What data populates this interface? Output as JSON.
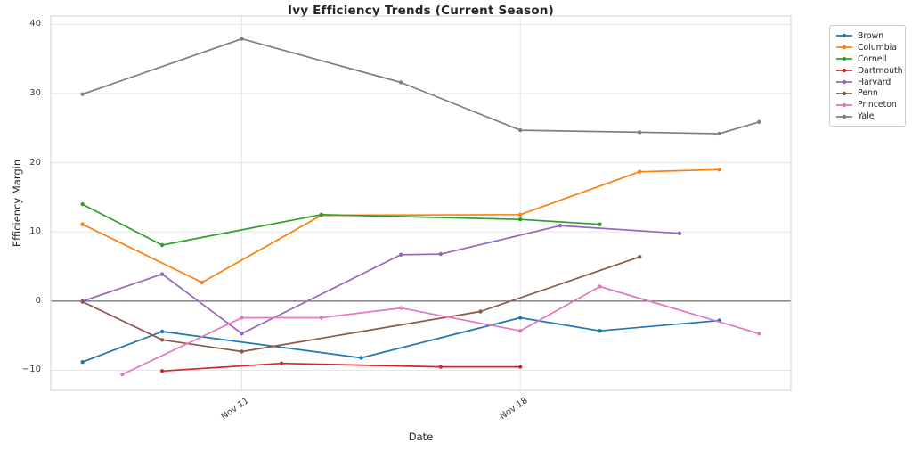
{
  "chart_data": {
    "type": "line",
    "title": "Ivy Efficiency Trends (Current Season)",
    "xlabel": "Date",
    "ylabel": "Efficiency Margin",
    "x_ticks": [
      {
        "label": "Nov 11",
        "day": 11
      },
      {
        "label": "Nov 18",
        "day": 18
      }
    ],
    "y_ticks": [
      {
        "label": "−10",
        "value": -10
      },
      {
        "label": "0",
        "value": 0
      },
      {
        "label": "10",
        "value": 10
      },
      {
        "label": "20",
        "value": 20
      },
      {
        "label": "30",
        "value": 30
      },
      {
        "label": "40",
        "value": 40
      }
    ],
    "xlim_days": [
      6.2,
      24.8
    ],
    "ylim": [
      -12.9,
      41.2
    ],
    "grid": true,
    "zero_line": true,
    "legend_position": "outside-top-right",
    "series": [
      {
        "name": "Brown",
        "color": "#1f77b4",
        "points": [
          {
            "date": "Nov 7",
            "day": 7,
            "value": -8.8
          },
          {
            "date": "Nov 9",
            "day": 9,
            "value": -4.4
          },
          {
            "date": "Nov 14",
            "day": 14,
            "value": -8.2
          },
          {
            "date": "Nov 18",
            "day": 18,
            "value": -2.4
          },
          {
            "date": "Nov 20",
            "day": 20,
            "value": -4.3
          },
          {
            "date": "Nov 23",
            "day": 23,
            "value": -2.8
          }
        ]
      },
      {
        "name": "Columbia",
        "color": "#ff7f0e",
        "points": [
          {
            "date": "Nov 7",
            "day": 7,
            "value": 11.1
          },
          {
            "date": "Nov 10",
            "day": 10,
            "value": 2.7
          },
          {
            "date": "Nov 13",
            "day": 13,
            "value": 12.4
          },
          {
            "date": "Nov 18",
            "day": 18,
            "value": 12.5
          },
          {
            "date": "Nov 21",
            "day": 21,
            "value": 18.7
          },
          {
            "date": "Nov 23",
            "day": 23,
            "value": 19.0
          }
        ]
      },
      {
        "name": "Cornell",
        "color": "#2ca02c",
        "points": [
          {
            "date": "Nov 7",
            "day": 7,
            "value": 14.0
          },
          {
            "date": "Nov 9",
            "day": 9,
            "value": 8.1
          },
          {
            "date": "Nov 13",
            "day": 13,
            "value": 12.5
          },
          {
            "date": "Nov 18",
            "day": 18,
            "value": 11.8
          },
          {
            "date": "Nov 20",
            "day": 20,
            "value": 11.1
          }
        ]
      },
      {
        "name": "Dartmouth",
        "color": "#d62728",
        "points": [
          {
            "date": "Nov 9",
            "day": 9,
            "value": -10.1
          },
          {
            "date": "Nov 12",
            "day": 12,
            "value": -9.0
          },
          {
            "date": "Nov 16",
            "day": 16,
            "value": -9.5
          },
          {
            "date": "Nov 18",
            "day": 18,
            "value": -9.5
          }
        ]
      },
      {
        "name": "Harvard",
        "color": "#9467bd",
        "points": [
          {
            "date": "Nov 7",
            "day": 7,
            "value": 0.0
          },
          {
            "date": "Nov 9",
            "day": 9,
            "value": 3.9
          },
          {
            "date": "Nov 11",
            "day": 11,
            "value": -4.7
          },
          {
            "date": "Nov 15",
            "day": 15,
            "value": 6.7
          },
          {
            "date": "Nov 16",
            "day": 16,
            "value": 6.8
          },
          {
            "date": "Nov 19",
            "day": 19,
            "value": 10.9
          },
          {
            "date": "Nov 22",
            "day": 22,
            "value": 9.8
          }
        ]
      },
      {
        "name": "Penn",
        "color": "#8c564b",
        "points": [
          {
            "date": "Nov 7",
            "day": 7,
            "value": -0.1
          },
          {
            "date": "Nov 9",
            "day": 9,
            "value": -5.6
          },
          {
            "date": "Nov 11",
            "day": 11,
            "value": -7.3
          },
          {
            "date": "Nov 17",
            "day": 17,
            "value": -1.5
          },
          {
            "date": "Nov 21",
            "day": 21,
            "value": 6.4
          }
        ]
      },
      {
        "name": "Princeton",
        "color": "#e377c2",
        "points": [
          {
            "date": "Nov 8",
            "day": 8,
            "value": -10.6
          },
          {
            "date": "Nov 11",
            "day": 11,
            "value": -2.4
          },
          {
            "date": "Nov 13",
            "day": 13,
            "value": -2.4
          },
          {
            "date": "Nov 15",
            "day": 15,
            "value": -1.0
          },
          {
            "date": "Nov 18",
            "day": 18,
            "value": -4.3
          },
          {
            "date": "Nov 20",
            "day": 20,
            "value": 2.1
          },
          {
            "date": "Nov 24",
            "day": 24,
            "value": -4.7
          }
        ]
      },
      {
        "name": "Yale",
        "color": "#7f7f7f",
        "points": [
          {
            "date": "Nov 7",
            "day": 7,
            "value": 29.9
          },
          {
            "date": "Nov 11",
            "day": 11,
            "value": 37.9
          },
          {
            "date": "Nov 15",
            "day": 15,
            "value": 31.6
          },
          {
            "date": "Nov 18",
            "day": 18,
            "value": 24.7
          },
          {
            "date": "Nov 21",
            "day": 21,
            "value": 24.4
          },
          {
            "date": "Nov 23",
            "day": 23,
            "value": 24.2
          },
          {
            "date": "Nov 24",
            "day": 24,
            "value": 25.9
          }
        ]
      }
    ],
    "style": {
      "grid_color": "#e7e7e7",
      "spine_color": "#d0d0d0",
      "zero_line_color": "#4a4a4a",
      "background": "#ffffff"
    }
  }
}
